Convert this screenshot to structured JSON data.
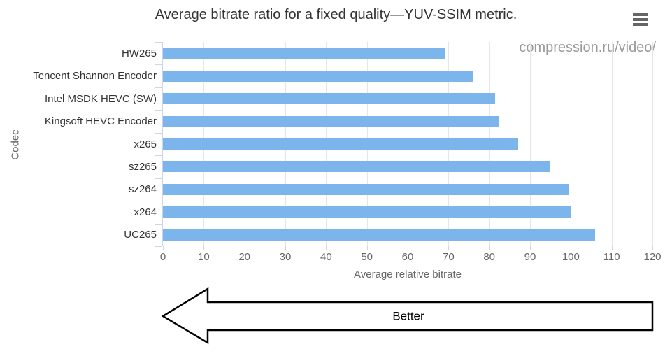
{
  "header": {
    "title": "Average bitrate ratio for a fixed quality—YUV-SSIM metric.",
    "menu_icon": "hamburger-icon"
  },
  "credits": {
    "label": "compression.ru/video/"
  },
  "annotation": {
    "arrow_label": "Better",
    "arrow_direction": "left"
  },
  "colors": {
    "bar": "#7cb5ec",
    "gridline": "#e6e6e6",
    "axis_line": "#ccd6eb",
    "tick_label": "#666666",
    "category_label": "#333333",
    "title": "#333333",
    "credits": "#9a9a9a",
    "menu_icon": "#666666"
  },
  "chart_data": {
    "type": "bar",
    "orientation": "horizontal",
    "title": "Average bitrate ratio for a fixed quality—YUV-SSIM metric.",
    "categories": [
      "HW265",
      "Tencent Shannon Encoder",
      "Intel MSDK HEVC (SW)",
      "Kingsoft HEVC Encoder",
      "x265",
      "sz265",
      "sz264",
      "x264",
      "UC265"
    ],
    "values": [
      69,
      76,
      81.5,
      82.5,
      87,
      95,
      99.5,
      100,
      106
    ],
    "xlabel": "Average relative bitrate",
    "ylabel": "Codec",
    "xlim": [
      0,
      120
    ],
    "xticks": [
      0,
      10,
      20,
      30,
      40,
      50,
      60,
      70,
      80,
      90,
      100,
      110,
      120
    ],
    "grid": true,
    "legend": "none",
    "bar_color": "#7cb5ec"
  }
}
